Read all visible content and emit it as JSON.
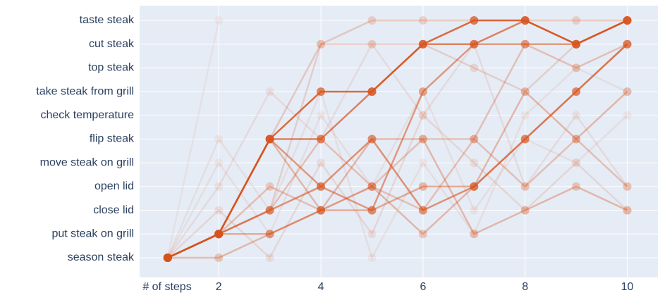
{
  "chart_data": {
    "type": "line",
    "categories": [
      "season steak",
      "put steak on grill",
      "close lid",
      "open lid",
      "move steak on grill",
      "flip steak",
      "check temperature",
      "take steak from grill",
      "top steak",
      "cut steak",
      "taste steak"
    ],
    "x_label": "# of steps",
    "xlim": [
      0.45,
      10.6
    ],
    "xticks": [
      2,
      4,
      6,
      8,
      10
    ],
    "grid": true,
    "color": "#d9541e",
    "series": [
      {
        "x": [
          1,
          2,
          3,
          4,
          5,
          6,
          7,
          8,
          9,
          10
        ],
        "values": [
          "season steak",
          "put steak on grill",
          "flip steak",
          "take steak from grill",
          "take steak from grill",
          "cut steak",
          "taste steak",
          "taste steak",
          "cut steak",
          "taste steak"
        ],
        "opacity": 0.85
      },
      {
        "x": [
          1,
          2,
          3,
          4,
          5,
          6,
          7,
          8,
          9,
          10
        ],
        "values": [
          "season steak",
          "put steak on grill",
          "flip steak",
          "flip steak",
          "take steak from grill",
          "cut steak",
          "cut steak",
          "taste steak",
          "cut steak",
          "taste steak"
        ],
        "opacity": 0.7
      },
      {
        "x": [
          1,
          2,
          3,
          4,
          5,
          6,
          7,
          8,
          9,
          10
        ],
        "values": [
          "season steak",
          "put steak on grill",
          "close lid",
          "open lid",
          "flip steak",
          "close lid",
          "open lid",
          "flip steak",
          "take steak from grill",
          "cut steak"
        ],
        "opacity": 0.6
      },
      {
        "x": [
          1,
          2,
          3,
          4,
          5,
          6,
          7,
          8,
          9,
          10
        ],
        "values": [
          "season steak",
          "put steak on grill",
          "flip steak",
          "open lid",
          "close lid",
          "take steak from grill",
          "cut steak",
          "cut steak",
          "cut steak",
          "taste steak"
        ],
        "opacity": 0.55
      },
      {
        "x": [
          1,
          2,
          3,
          4,
          5,
          6,
          7,
          8,
          9,
          10
        ],
        "values": [
          "season steak",
          "put steak on grill",
          "put steak on grill",
          "close lid",
          "close lid",
          "open lid",
          "open lid",
          "flip steak",
          "take steak from grill",
          "cut steak"
        ],
        "opacity": 0.45
      },
      {
        "x": [
          1,
          2,
          3,
          4,
          5,
          6,
          7,
          8,
          9,
          10
        ],
        "values": [
          "season steak",
          "season steak",
          "put steak on grill",
          "close lid",
          "flip steak",
          "flip steak",
          "put steak on grill",
          "close lid",
          "open lid",
          "close lid"
        ],
        "opacity": 0.35
      },
      {
        "x": [
          1,
          2,
          3,
          4,
          5,
          6,
          7,
          8,
          9,
          10
        ],
        "values": [
          "season steak",
          "put steak on grill",
          "open lid",
          "close lid",
          "open lid",
          "flip steak",
          "flip steak",
          "cut steak",
          "top steak",
          "cut steak"
        ],
        "opacity": 0.3
      },
      {
        "x": [
          1,
          2,
          3,
          4,
          5,
          6,
          7,
          8,
          9,
          10
        ],
        "values": [
          "season steak",
          "put steak on grill",
          "flip steak",
          "cut steak",
          "taste steak",
          "taste steak",
          "taste steak",
          "taste steak",
          "taste steak",
          "taste steak"
        ],
        "opacity": 0.25
      },
      {
        "x": [
          1,
          2,
          3,
          4,
          5,
          6,
          7,
          8,
          9,
          10
        ],
        "values": [
          "season steak",
          "close lid",
          "season steak",
          "move steak on grill",
          "put steak on grill",
          "check temperature",
          "move steak on grill",
          "close lid",
          "move steak on grill",
          "close lid"
        ],
        "opacity": 0.15
      },
      {
        "x": [
          1,
          2,
          3,
          4,
          5,
          6,
          7,
          8,
          9,
          10
        ],
        "values": [
          "season steak",
          "move steak on grill",
          "put steak on grill",
          "check temperature",
          "open lid",
          "take steak from grill",
          "close lid",
          "flip steak",
          "move steak on grill",
          "check temperature"
        ],
        "opacity": 0.1
      },
      {
        "x": [
          1,
          2
        ],
        "values": [
          "season steak",
          "taste steak"
        ],
        "opacity": 0.08
      },
      {
        "x": [
          1,
          2,
          3,
          4,
          5,
          6,
          7,
          8,
          9,
          10
        ],
        "values": [
          "season steak",
          "flip steak",
          "close lid",
          "take steak from grill",
          "season steak",
          "move steak on grill",
          "put steak on grill",
          "check temperature",
          "top steak",
          "take steak from grill"
        ],
        "opacity": 0.1
      },
      {
        "x": [
          1,
          2,
          3,
          4,
          5,
          6,
          7,
          8,
          9,
          10
        ],
        "values": [
          "season steak",
          "put steak on grill",
          "close lid",
          "flip steak",
          "open lid",
          "close lid",
          "flip steak",
          "open lid",
          "flip steak",
          "open lid"
        ],
        "opacity": 0.3
      },
      {
        "x": [
          1,
          2,
          3,
          4,
          5,
          6,
          7,
          8,
          9,
          10
        ],
        "values": [
          "season steak",
          "put steak on grill",
          "flip steak",
          "close lid",
          "open lid",
          "put steak on grill",
          "open lid",
          "take steak from grill",
          "flip steak",
          "take steak from grill"
        ],
        "opacity": 0.35
      },
      {
        "x": [
          1,
          2,
          3,
          4,
          5,
          6,
          7,
          8,
          9,
          10
        ],
        "values": [
          "season steak",
          "put steak on grill",
          "close lid",
          "cut steak",
          "cut steak",
          "cut steak",
          "top steak",
          "take steak from grill",
          "cut steak",
          "taste steak"
        ],
        "opacity": 0.2
      },
      {
        "x": [
          1,
          2,
          3,
          4,
          5,
          6,
          7,
          8,
          9,
          10
        ],
        "values": [
          "season steak",
          "open lid",
          "take steak from grill",
          "flip steak",
          "cut steak",
          "check temperature",
          "cut steak",
          "open lid",
          "check temperature",
          "open lid"
        ],
        "opacity": 0.12
      }
    ]
  }
}
